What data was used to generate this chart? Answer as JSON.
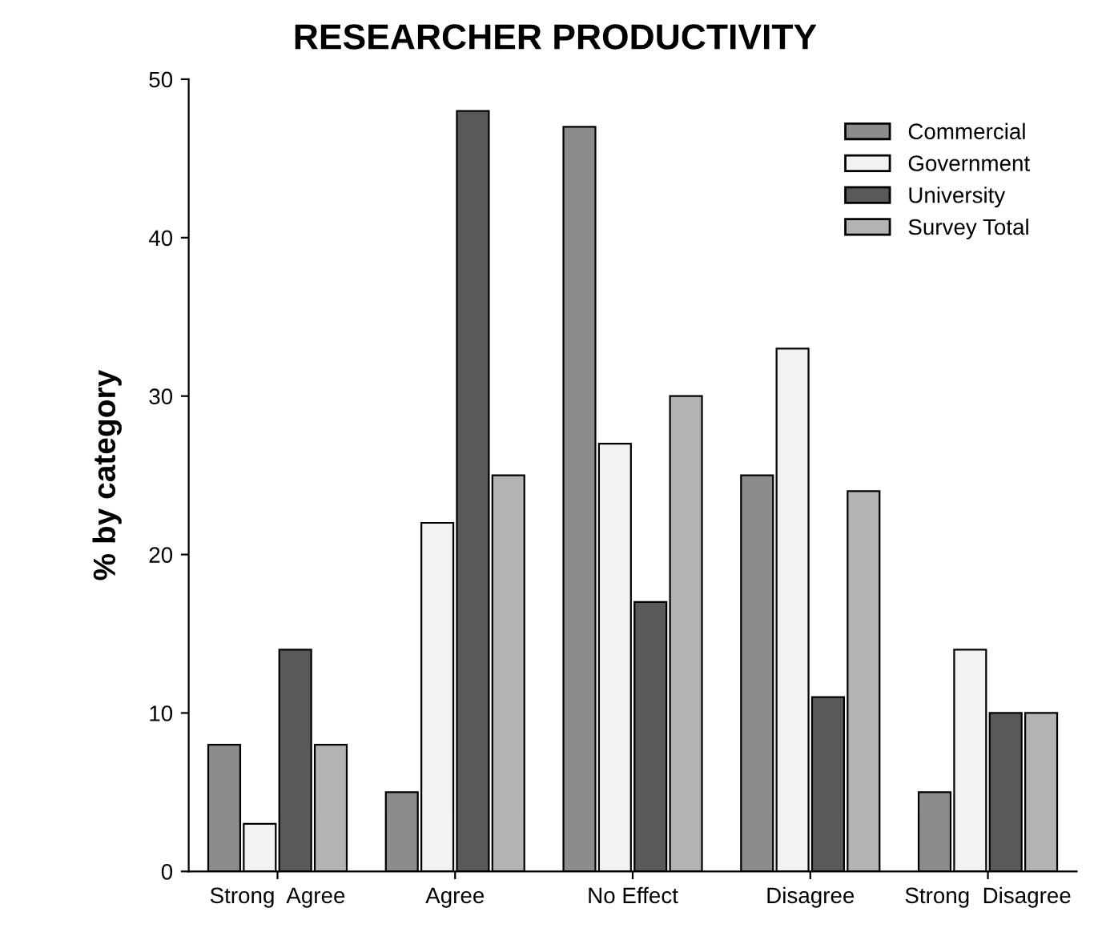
{
  "chart_data": {
    "type": "bar",
    "title": "RESEARCHER PRODUCTIVITY",
    "ylabel": "% by category",
    "categories": [
      "Strong  Agree",
      "Agree",
      "No Effect",
      "Disagree",
      "Strong  Disagree"
    ],
    "series": [
      {
        "name": "Commercial",
        "color": "#8c8c8c",
        "values": [
          8,
          5,
          47,
          25,
          5
        ]
      },
      {
        "name": "Government",
        "color": "#f2f2f2",
        "values": [
          3,
          22,
          27,
          33,
          14
        ]
      },
      {
        "name": "University",
        "color": "#595959",
        "values": [
          14,
          48,
          17,
          11,
          10
        ]
      },
      {
        "name": "Survey Total",
        "color": "#b3b3b3",
        "values": [
          8,
          25,
          30,
          24,
          10
        ]
      }
    ],
    "ylim": [
      0,
      50
    ],
    "yticks": [
      0,
      10,
      20,
      30,
      40,
      50
    ],
    "grid": false,
    "legend": "top right"
  }
}
